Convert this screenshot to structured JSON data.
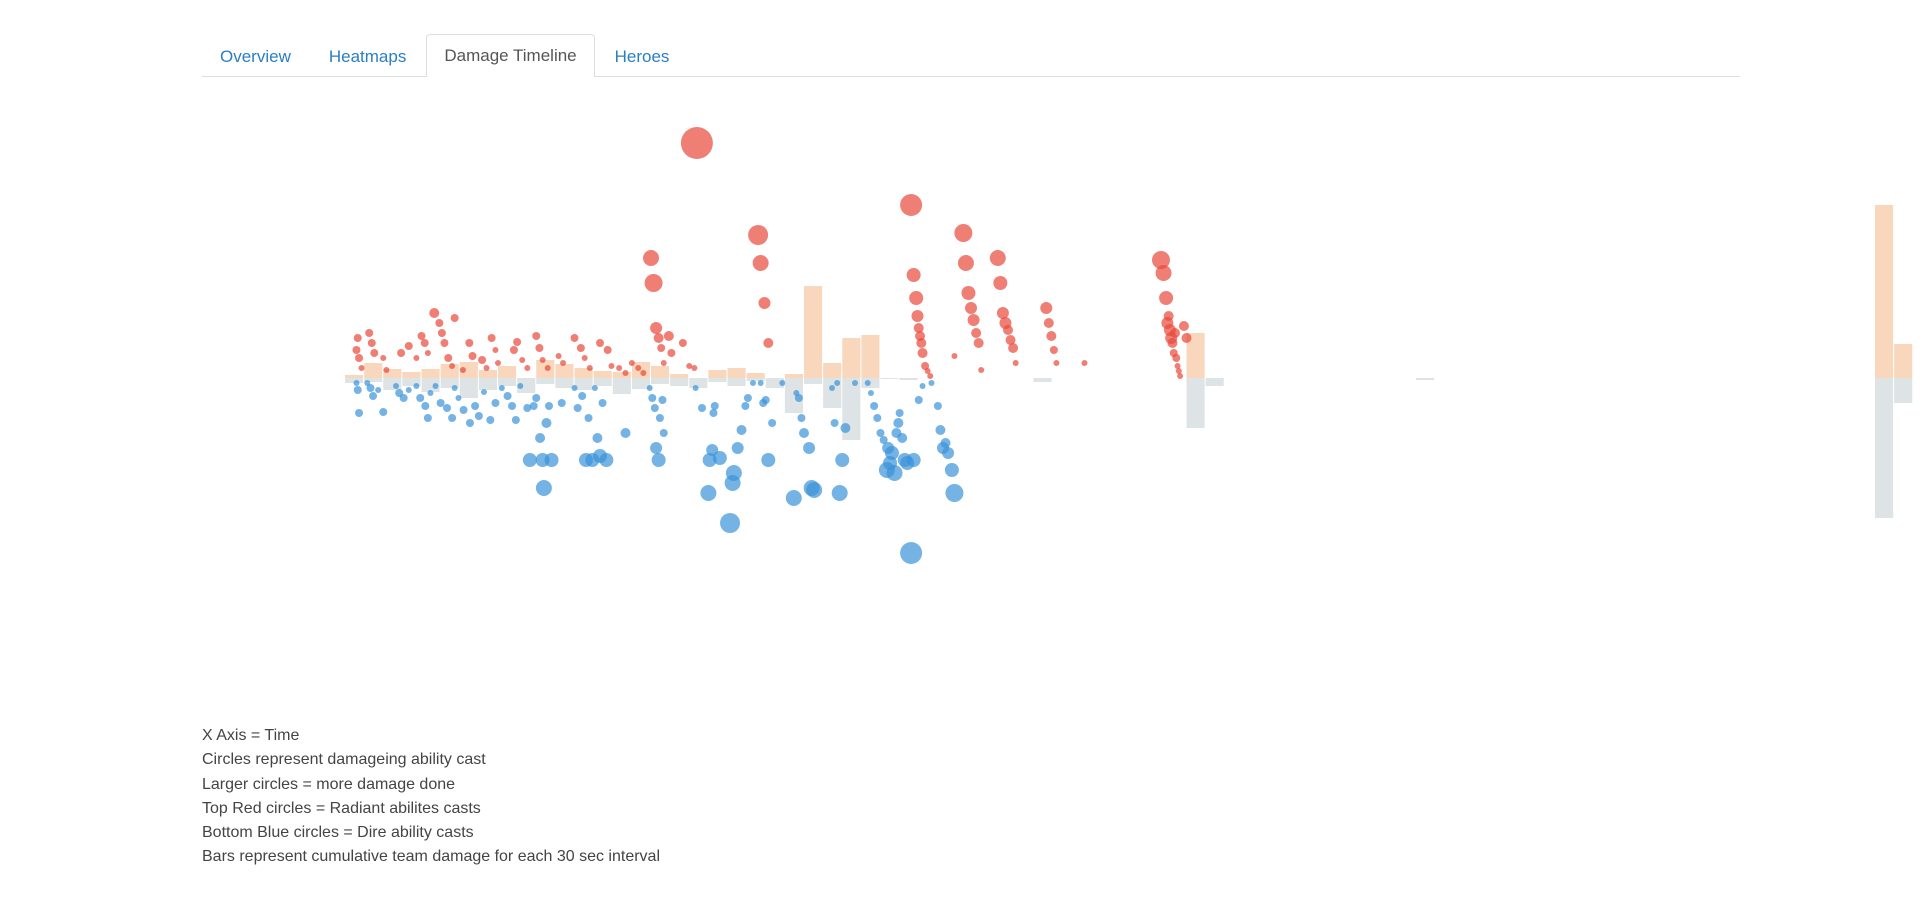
{
  "tabs": [
    {
      "label": "Overview",
      "active": false
    },
    {
      "label": "Heatmaps",
      "active": false
    },
    {
      "label": "Damage Timeline",
      "active": true
    },
    {
      "label": "Heroes",
      "active": false
    }
  ],
  "legend": [
    "X Axis = Time",
    "Circles represent damageing ability cast",
    "Larger circles = more damage done",
    "Top Red circles = Radiant abilites casts",
    "Bottom Blue circles = Dire ability casts",
    "Bars represent cumulative team damage for each 30 sec interval"
  ],
  "chart_data": {
    "type": "scatter",
    "title": "",
    "xlabel": "",
    "ylabel": "",
    "grid": false,
    "colors": {
      "radiant_circle": "#e8493a",
      "dire_circle": "#3a93d8",
      "radiant_bar": "#f7d0b0",
      "dire_bar": "#d8dfe0"
    },
    "x_interval": 30,
    "x_max": 2000,
    "bars": {
      "radiant": [
        3,
        15,
        9,
        6,
        9,
        14,
        16,
        8,
        12,
        0,
        18,
        14,
        10,
        7,
        6,
        16,
        12,
        4,
        0,
        8,
        10,
        5,
        0,
        4,
        92,
        15,
        40,
        43,
        0,
        0,
        0,
        0,
        0,
        0,
        0,
        0,
        0,
        0,
        0,
        0,
        0,
        0,
        0,
        0,
        45,
        0,
        0,
        0,
        0,
        0,
        0,
        0,
        0,
        0,
        0,
        0,
        0,
        0,
        0,
        0,
        0,
        0,
        0,
        0,
        0,
        0,
        0,
        0,
        0,
        0,
        0,
        0,
        0,
        0,
        0,
        0,
        0,
        0,
        0,
        0,
        173,
        34,
        0,
        0,
        0,
        0,
        0,
        0,
        0,
        0,
        0,
        0,
        0,
        0,
        0,
        0,
        0,
        0,
        0,
        0,
        0,
        0,
        0,
        0,
        0,
        0,
        0,
        0,
        1,
        230,
        24,
        0,
        0,
        0,
        0,
        0,
        0,
        0,
        0,
        0,
        0,
        0
      ],
      "dire": [
        5,
        4,
        12,
        8,
        14,
        10,
        20,
        12,
        8,
        15,
        6,
        10,
        12,
        8,
        16,
        11,
        6,
        8,
        10,
        4,
        8,
        3,
        10,
        35,
        6,
        30,
        62,
        10,
        1,
        2,
        0,
        0,
        0,
        0,
        0,
        0,
        4,
        0,
        0,
        0,
        0,
        0,
        0,
        0,
        50,
        8,
        0,
        0,
        0,
        0,
        0,
        0,
        0,
        0,
        0,
        0,
        2,
        0,
        0,
        0,
        0,
        0,
        0,
        0,
        0,
        0,
        0,
        0,
        0,
        0,
        0,
        0,
        0,
        0,
        0,
        0,
        0,
        0,
        0,
        0,
        140,
        25,
        0,
        0,
        0,
        0,
        0,
        0,
        0,
        0,
        0,
        0,
        0,
        0,
        0,
        0,
        0,
        0,
        0,
        0,
        0,
        0,
        0,
        0,
        0,
        0,
        0,
        0,
        60,
        220,
        8,
        0,
        0,
        0,
        0,
        0,
        0,
        0,
        0,
        0,
        0,
        0
      ]
    },
    "radiant_casts": [
      [
        18,
        28,
        4
      ],
      [
        20,
        40,
        4
      ],
      [
        22,
        20,
        4
      ],
      [
        26,
        10,
        3
      ],
      [
        38,
        45,
        4
      ],
      [
        42,
        35,
        4
      ],
      [
        46,
        25,
        4
      ],
      [
        60,
        20,
        3
      ],
      [
        65,
        8,
        3
      ],
      [
        88,
        25,
        4
      ],
      [
        100,
        32,
        4
      ],
      [
        112,
        20,
        3
      ],
      [
        120,
        42,
        4
      ],
      [
        125,
        35,
        4
      ],
      [
        130,
        25,
        3
      ],
      [
        140,
        65,
        5
      ],
      [
        148,
        55,
        4
      ],
      [
        152,
        45,
        4
      ],
      [
        156,
        35,
        4
      ],
      [
        162,
        20,
        4
      ],
      [
        168,
        12,
        3
      ],
      [
        172,
        60,
        4
      ],
      [
        185,
        8,
        3
      ],
      [
        195,
        35,
        4
      ],
      [
        200,
        22,
        4
      ],
      [
        215,
        18,
        4
      ],
      [
        222,
        10,
        3
      ],
      [
        230,
        40,
        4
      ],
      [
        236,
        28,
        3
      ],
      [
        240,
        15,
        3
      ],
      [
        265,
        28,
        4
      ],
      [
        270,
        36,
        4
      ],
      [
        278,
        18,
        3
      ],
      [
        286,
        10,
        3
      ],
      [
        300,
        42,
        4
      ],
      [
        305,
        30,
        4
      ],
      [
        310,
        18,
        3
      ],
      [
        318,
        10,
        3
      ],
      [
        335,
        22,
        3
      ],
      [
        342,
        15,
        3
      ],
      [
        360,
        40,
        4
      ],
      [
        370,
        30,
        4
      ],
      [
        376,
        20,
        3
      ],
      [
        384,
        10,
        3
      ],
      [
        400,
        35,
        4
      ],
      [
        412,
        28,
        4
      ],
      [
        418,
        12,
        3
      ],
      [
        430,
        10,
        3
      ],
      [
        440,
        5,
        3
      ],
      [
        450,
        15,
        3
      ],
      [
        460,
        10,
        3
      ],
      [
        468,
        5,
        3
      ],
      [
        480,
        120,
        8
      ],
      [
        484,
        95,
        9
      ],
      [
        488,
        50,
        6
      ],
      [
        492,
        40,
        5
      ],
      [
        496,
        30,
        4
      ],
      [
        500,
        15,
        3
      ],
      [
        508,
        42,
        5
      ],
      [
        512,
        25,
        4
      ],
      [
        530,
        35,
        4
      ],
      [
        540,
        12,
        3
      ],
      [
        548,
        10,
        3
      ],
      [
        552,
        235,
        16
      ],
      [
        648,
        143,
        10
      ],
      [
        652,
        115,
        8
      ],
      [
        658,
        75,
        6
      ],
      [
        664,
        35,
        5
      ],
      [
        888,
        173,
        11
      ],
      [
        892,
        103,
        7
      ],
      [
        896,
        80,
        7
      ],
      [
        898,
        62,
        6
      ],
      [
        900,
        50,
        5
      ],
      [
        902,
        42,
        5
      ],
      [
        904,
        35,
        5
      ],
      [
        906,
        25,
        5
      ],
      [
        910,
        12,
        4
      ],
      [
        914,
        7,
        3
      ],
      [
        918,
        2,
        3
      ],
      [
        956,
        22,
        3
      ],
      [
        970,
        145,
        9
      ],
      [
        974,
        115,
        8
      ],
      [
        978,
        85,
        7
      ],
      [
        982,
        70,
        6
      ],
      [
        986,
        58,
        6
      ],
      [
        990,
        45,
        5
      ],
      [
        994,
        35,
        5
      ],
      [
        998,
        8,
        3
      ],
      [
        1024,
        120,
        8
      ],
      [
        1028,
        95,
        7
      ],
      [
        1032,
        65,
        6
      ],
      [
        1036,
        55,
        6
      ],
      [
        1040,
        48,
        5
      ],
      [
        1044,
        38,
        5
      ],
      [
        1048,
        30,
        5
      ],
      [
        1052,
        15,
        3
      ],
      [
        1100,
        70,
        6
      ],
      [
        1104,
        55,
        5
      ],
      [
        1108,
        42,
        5
      ],
      [
        1112,
        28,
        4
      ],
      [
        1116,
        15,
        3
      ],
      [
        1160,
        15,
        3
      ],
      [
        1280,
        118,
        9
      ],
      [
        1284,
        105,
        8
      ],
      [
        1288,
        80,
        7
      ],
      [
        1290,
        55,
        6
      ],
      [
        1292,
        62,
        5
      ],
      [
        1294,
        48,
        6
      ],
      [
        1296,
        40,
        6
      ],
      [
        1298,
        35,
        5
      ],
      [
        1300,
        25,
        4
      ],
      [
        1302,
        45,
        5
      ],
      [
        1304,
        20,
        4
      ],
      [
        1306,
        12,
        3
      ],
      [
        1308,
        7,
        3
      ],
      [
        1310,
        2,
        3
      ],
      [
        1316,
        52,
        5
      ],
      [
        1320,
        40,
        5
      ]
    ],
    "dire_casts": [
      [
        18,
        -5,
        3
      ],
      [
        20,
        -12,
        4
      ],
      [
        22,
        -35,
        4
      ],
      [
        35,
        -5,
        3
      ],
      [
        40,
        -10,
        4
      ],
      [
        44,
        -18,
        4
      ],
      [
        52,
        -12,
        3
      ],
      [
        60,
        -34,
        4
      ],
      [
        80,
        -8,
        3
      ],
      [
        85,
        -15,
        4
      ],
      [
        92,
        -20,
        4
      ],
      [
        100,
        -12,
        3
      ],
      [
        112,
        -8,
        3
      ],
      [
        118,
        -20,
        4
      ],
      [
        126,
        -28,
        4
      ],
      [
        130,
        -40,
        4
      ],
      [
        134,
        -15,
        3
      ],
      [
        142,
        -8,
        3
      ],
      [
        150,
        -25,
        4
      ],
      [
        160,
        -30,
        4
      ],
      [
        168,
        -40,
        4
      ],
      [
        172,
        -10,
        3
      ],
      [
        178,
        -20,
        3
      ],
      [
        186,
        -32,
        4
      ],
      [
        196,
        -45,
        4
      ],
      [
        204,
        -28,
        4
      ],
      [
        210,
        -38,
        4
      ],
      [
        218,
        -14,
        3
      ],
      [
        228,
        -42,
        4
      ],
      [
        236,
        -25,
        4
      ],
      [
        246,
        -10,
        3
      ],
      [
        255,
        -18,
        4
      ],
      [
        262,
        -28,
        4
      ],
      [
        268,
        -42,
        4
      ],
      [
        275,
        -8,
        3
      ],
      [
        286,
        -30,
        4
      ],
      [
        290,
        -82,
        7
      ],
      [
        296,
        -28,
        4
      ],
      [
        300,
        -20,
        4
      ],
      [
        306,
        -60,
        5
      ],
      [
        310,
        -82,
        7
      ],
      [
        312,
        -110,
        8
      ],
      [
        316,
        -45,
        5
      ],
      [
        320,
        -28,
        4
      ],
      [
        324,
        -82,
        7
      ],
      [
        340,
        -25,
        4
      ],
      [
        360,
        -10,
        3
      ],
      [
        365,
        -30,
        4
      ],
      [
        372,
        -18,
        4
      ],
      [
        378,
        -82,
        7
      ],
      [
        382,
        -40,
        4
      ],
      [
        388,
        -82,
        7
      ],
      [
        392,
        -10,
        3
      ],
      [
        396,
        -60,
        5
      ],
      [
        400,
        -78,
        7
      ],
      [
        404,
        -25,
        4
      ],
      [
        410,
        -82,
        7
      ],
      [
        440,
        -55,
        5
      ],
      [
        478,
        -10,
        3
      ],
      [
        482,
        -20,
        4
      ],
      [
        486,
        -30,
        4
      ],
      [
        488,
        -70,
        6
      ],
      [
        492,
        -82,
        7
      ],
      [
        494,
        -40,
        4
      ],
      [
        498,
        -22,
        4
      ],
      [
        500,
        -55,
        4
      ],
      [
        550,
        -10,
        3
      ],
      [
        560,
        -30,
        4
      ],
      [
        570,
        -115,
        8
      ],
      [
        572,
        -82,
        7
      ],
      [
        576,
        -72,
        6
      ],
      [
        578,
        -35,
        4
      ],
      [
        580,
        -28,
        4
      ],
      [
        588,
        -80,
        7
      ],
      [
        604,
        -145,
        10
      ],
      [
        608,
        -105,
        8
      ],
      [
        610,
        -95,
        8
      ],
      [
        616,
        -70,
        6
      ],
      [
        622,
        -52,
        5
      ],
      [
        628,
        -28,
        4
      ],
      [
        632,
        -20,
        4
      ],
      [
        640,
        -5,
        3
      ],
      [
        652,
        -5,
        3
      ],
      [
        656,
        -25,
        4
      ],
      [
        660,
        -22,
        4
      ],
      [
        664,
        -82,
        7
      ],
      [
        670,
        -45,
        4
      ],
      [
        686,
        -5,
        3
      ],
      [
        704,
        -120,
        8
      ],
      [
        708,
        -15,
        3
      ],
      [
        712,
        -20,
        4
      ],
      [
        716,
        -40,
        4
      ],
      [
        720,
        -55,
        5
      ],
      [
        728,
        -70,
        6
      ],
      [
        732,
        -110,
        8
      ],
      [
        736,
        -112,
        8
      ],
      [
        764,
        -10,
        3
      ],
      [
        768,
        -45,
        4
      ],
      [
        772,
        -5,
        3
      ],
      [
        776,
        -115,
        8
      ],
      [
        780,
        -82,
        7
      ],
      [
        785,
        -50,
        5
      ],
      [
        800,
        -5,
        3
      ],
      [
        820,
        -5,
        3
      ],
      [
        825,
        -15,
        3
      ],
      [
        830,
        -28,
        4
      ],
      [
        835,
        -40,
        4
      ],
      [
        840,
        -55,
        4
      ],
      [
        845,
        -62,
        4
      ],
      [
        850,
        -92,
        8
      ],
      [
        852,
        -70,
        6
      ],
      [
        855,
        -85,
        7
      ],
      [
        858,
        -75,
        7
      ],
      [
        862,
        -95,
        8
      ],
      [
        865,
        -55,
        5
      ],
      [
        868,
        -45,
        5
      ],
      [
        870,
        -35,
        4
      ],
      [
        874,
        -60,
        5
      ],
      [
        878,
        -82,
        7
      ],
      [
        882,
        -85,
        7
      ],
      [
        888,
        -175,
        11
      ],
      [
        892,
        -82,
        7
      ],
      [
        900,
        -22,
        4
      ],
      [
        906,
        -8,
        3
      ],
      [
        920,
        -5,
        3
      ],
      [
        930,
        -28,
        4
      ],
      [
        934,
        -52,
        5
      ],
      [
        938,
        -70,
        6
      ],
      [
        942,
        -65,
        5
      ],
      [
        946,
        -75,
        6
      ],
      [
        952,
        -92,
        7
      ],
      [
        956,
        -115,
        9
      ]
    ]
  }
}
